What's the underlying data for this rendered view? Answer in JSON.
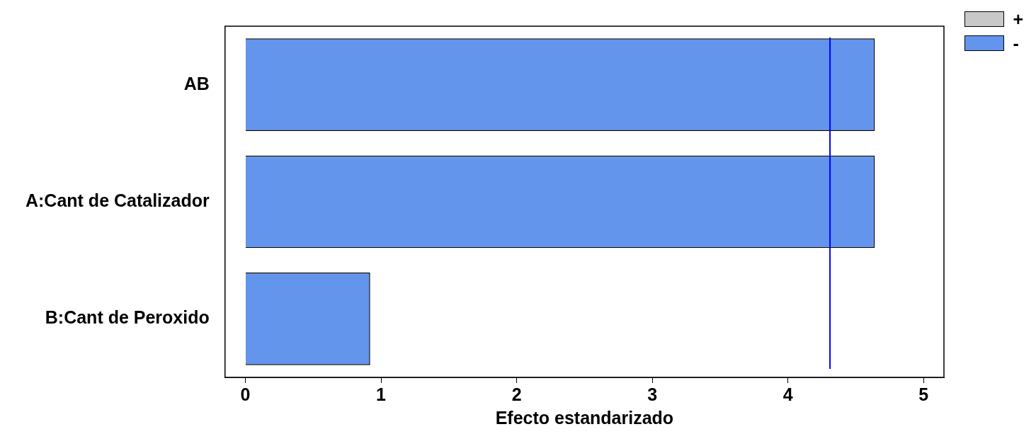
{
  "chart_data": {
    "type": "bar",
    "orientation": "horizontal",
    "categories": [
      "AB",
      "A:Cant de Catalizador",
      "B:Cant de Peroxido"
    ],
    "series": [
      {
        "name": "+",
        "color": "#c8c8c8",
        "values": [
          null,
          null,
          null
        ]
      },
      {
        "name": "-",
        "color": "#6495ed",
        "values": [
          4.64,
          4.64,
          0.92
        ]
      }
    ],
    "xlabel": "Efecto estandarizado",
    "xlim": [
      -0.15,
      5.15
    ],
    "xticks": [
      0,
      1,
      2,
      3,
      4,
      5
    ],
    "ref_lines": [
      {
        "axis": "x",
        "value": 4.31,
        "color": "#0000ff"
      }
    ],
    "grid": false,
    "legend": "top right"
  }
}
